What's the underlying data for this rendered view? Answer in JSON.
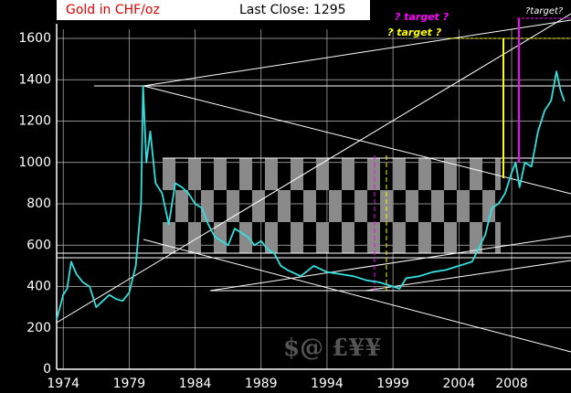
{
  "chart_data": {
    "type": "line",
    "title": "Gold in CHF/oz",
    "subtitle": "Last Close: 1295",
    "annotations": [
      "? target ?",
      "? target ?",
      "?target?",
      "$@ £¥¥"
    ],
    "x": [
      1973.5,
      1974.0,
      1974.3,
      1974.6,
      1975.0,
      1975.5,
      1976.0,
      1976.5,
      1977.0,
      1977.5,
      1978.0,
      1978.5,
      1979.0,
      1979.5,
      1979.9,
      1980.05,
      1980.3,
      1980.6,
      1981.0,
      1981.5,
      1982.0,
      1982.5,
      1983.0,
      1983.5,
      1984.0,
      1984.5,
      1985.0,
      1985.5,
      1986.0,
      1986.5,
      1987.0,
      1987.5,
      1988.0,
      1988.5,
      1989.0,
      1989.5,
      1990.0,
      1990.5,
      1991.0,
      1992.0,
      1993.0,
      1994.0,
      1995.0,
      1996.0,
      1997.0,
      1998.0,
      1999.0,
      1999.5,
      2000.0,
      2001.0,
      2002.0,
      2003.0,
      2004.0,
      2005.0,
      2006.0,
      2006.5,
      2007.0,
      2007.5,
      2008.0,
      2008.3,
      2008.6,
      2009.0,
      2009.5,
      2010.0,
      2010.5,
      2011.0,
      2011.4,
      2011.7,
      2012.0
    ],
    "series": [
      {
        "name": "Gold in CHF/oz",
        "color": "#33e0e0",
        "values": [
          240,
          360,
          390,
          520,
          460,
          420,
          400,
          300,
          330,
          360,
          340,
          330,
          370,
          500,
          800,
          1370,
          1000,
          1150,
          900,
          850,
          700,
          900,
          880,
          850,
          800,
          780,
          700,
          640,
          620,
          600,
          680,
          660,
          640,
          600,
          620,
          580,
          560,
          500,
          480,
          450,
          500,
          470,
          460,
          450,
          430,
          420,
          400,
          390,
          440,
          450,
          470,
          480,
          500,
          520,
          650,
          780,
          800,
          850,
          950,
          1000,
          880,
          1000,
          980,
          1150,
          1250,
          1300,
          1440,
          1350,
          1295
        ]
      }
    ],
    "xlim": [
      1973.5,
      2012.5
    ],
    "xticks": [
      1974,
      1979,
      1984,
      1989,
      1994,
      1999,
      2004,
      2008
    ],
    "ylim": [
      0,
      1600
    ],
    "yticks": [
      0,
      200,
      400,
      600,
      800,
      1000,
      1200,
      1400,
      1600
    ],
    "grid": true
  }
}
